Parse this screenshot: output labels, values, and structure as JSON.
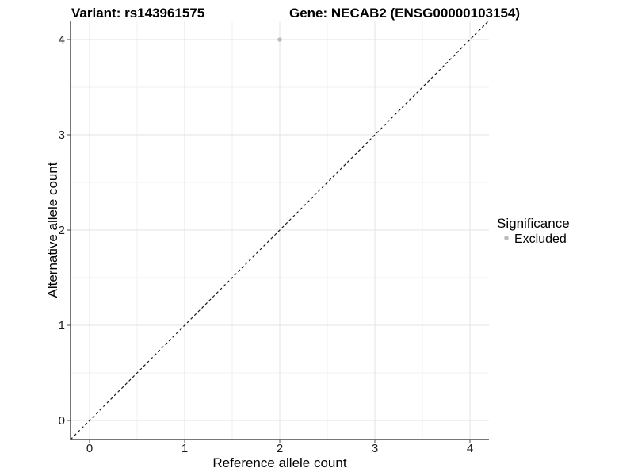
{
  "titles": {
    "left": "Variant: rs143961575",
    "right": "Gene: NECAB2 (ENSG00000103154)"
  },
  "chart_data": {
    "type": "scatter",
    "title_left": "Variant: rs143961575",
    "title_right": "Gene: NECAB2 (ENSG00000103154)",
    "xlabel": "Reference allele count",
    "ylabel": "Alternative allele count",
    "xlim": [
      -0.2,
      4.2
    ],
    "ylim": [
      -0.2,
      4.2
    ],
    "xticks": [
      0,
      1,
      2,
      3,
      4
    ],
    "yticks": [
      0,
      1,
      2,
      3,
      4
    ],
    "x_minor_ticks": [
      0.5,
      1.5,
      2.5,
      3.5
    ],
    "y_minor_ticks": [
      0.5,
      1.5,
      2.5,
      3.5
    ],
    "grid": "major and minor, light gray, white background",
    "points": [
      {
        "x": 2,
        "y": 4,
        "series": "Excluded"
      }
    ],
    "reference_line": {
      "slope": 1,
      "intercept": 0,
      "style": "dashed",
      "color": "#1a1a1a"
    },
    "legend": {
      "title": "Significance",
      "position": "right",
      "items": [
        {
          "label": "Excluded",
          "color": "#bdbdbd",
          "marker": "circle"
        }
      ]
    },
    "colors": {
      "background": "#ffffff",
      "grid_major": "#e3e3e3",
      "grid_minor": "#f1f1f1",
      "axis": "#4a4a4a",
      "point_excluded": "#bdbdbd"
    }
  }
}
